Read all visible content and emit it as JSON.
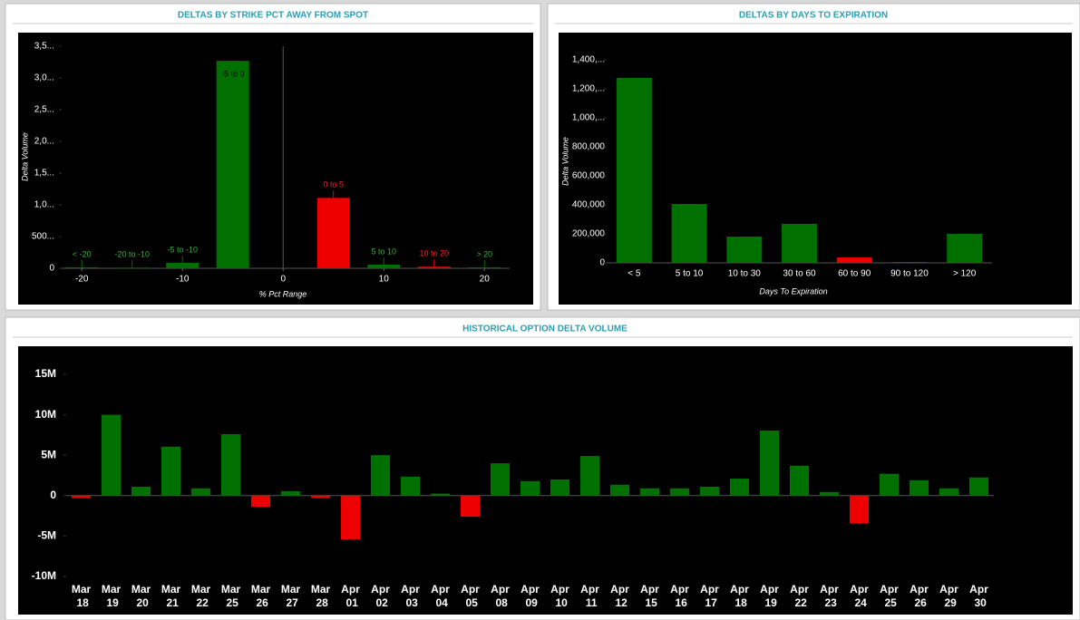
{
  "chart_data": [
    {
      "type": "bar",
      "title": "DELTAS BY STRIKE PCT AWAY FROM SPOT",
      "x_label": "% Pct Range",
      "y_label": "Delta Volume",
      "categories": [
        "< -20",
        "-20 to -10",
        "-5 to -10",
        "-5 to 0",
        "0 to 5",
        "5 to 10",
        "10 to 20",
        "> 20"
      ],
      "x": [
        -20,
        -15,
        -10,
        -5,
        5,
        10,
        15,
        20
      ],
      "values": [
        15000,
        10000,
        86000,
        3270000,
        1110000,
        57000,
        25000,
        15000
      ],
      "colors": [
        "#007000",
        "#007000",
        "#007000",
        "#007000",
        "#ee0000",
        "#007000",
        "#ee0000",
        "#007000"
      ],
      "xlim": [
        -22,
        22.5
      ],
      "xticks": [
        -20,
        -10,
        0,
        10,
        20
      ],
      "ylim": [
        0,
        3500000
      ],
      "yticks": [
        0,
        {
          "value": 500000,
          "label": "500..."
        },
        {
          "value": 1000000,
          "label": "1,0..."
        },
        {
          "value": 1500000,
          "label": "1,5..."
        },
        {
          "value": 2000000,
          "label": "2,0..."
        },
        {
          "value": 2500000,
          "label": "2,5..."
        },
        {
          "value": 3000000,
          "label": "3,0..."
        },
        {
          "value": 3500000,
          "label": "3,5..."
        }
      ]
    },
    {
      "type": "bar",
      "title": "DELTAS BY DAYS TO EXPIRATION",
      "x_label": "Days To Expiration",
      "y_label": "Delta Volume",
      "categories": [
        "< 5",
        "5 to 10",
        "10 to 30",
        "30 to 60",
        "60 to 90",
        "90 to 120",
        "> 120"
      ],
      "values": [
        1275000,
        406000,
        181000,
        269000,
        37000,
        6000,
        200000
      ],
      "colors": [
        "#007000",
        "#007000",
        "#007000",
        "#007000",
        "#ee0000",
        "#007000",
        "#007000"
      ],
      "ylim": [
        0,
        1450000
      ],
      "yticks": [
        0,
        {
          "value": 200000,
          "label": "200,000"
        },
        {
          "value": 400000,
          "label": "400,000"
        },
        {
          "value": 600000,
          "label": "600,000"
        },
        {
          "value": 800000,
          "label": "800,000"
        },
        {
          "value": 1000000,
          "label": "1,000,..."
        },
        {
          "value": 1200000,
          "label": "1,200,..."
        },
        {
          "value": 1400000,
          "label": "1,400,..."
        }
      ]
    },
    {
      "type": "bar",
      "title": "HISTORICAL OPTION DELTA VOLUME",
      "categories": [
        "Mar 18",
        "Mar 19",
        "Mar 20",
        "Mar 21",
        "Mar 22",
        "Mar 25",
        "Mar 26",
        "Mar 27",
        "Mar 28",
        "Apr 01",
        "Apr 02",
        "Apr 03",
        "Apr 04",
        "Apr 05",
        "Apr 08",
        "Apr 09",
        "Apr 10",
        "Apr 11",
        "Apr 12",
        "Apr 15",
        "Apr 16",
        "Apr 17",
        "Apr 18",
        "Apr 19",
        "Apr 22",
        "Apr 23",
        "Apr 24",
        "Apr 25",
        "Apr 26",
        "Apr 29",
        "Apr 30"
      ],
      "values": [
        -300000,
        10000000,
        1100000,
        6050000,
        900000,
        7600000,
        -1400000,
        550000,
        -300000,
        -5400000,
        5000000,
        2350000,
        250000,
        -2600000,
        4000000,
        1800000,
        2000000,
        4900000,
        1350000,
        900000,
        900000,
        1100000,
        2100000,
        8050000,
        3700000,
        450000,
        -3450000,
        2700000,
        1900000,
        900000,
        2250000
      ],
      "colors": [
        "#ee0000",
        "#007000",
        "#007000",
        "#007000",
        "#007000",
        "#007000",
        "#ee0000",
        "#007000",
        "#ee0000",
        "#ee0000",
        "#007000",
        "#007000",
        "#007000",
        "#ee0000",
        "#007000",
        "#007000",
        "#007000",
        "#007000",
        "#007000",
        "#007000",
        "#007000",
        "#007000",
        "#007000",
        "#007000",
        "#007000",
        "#007000",
        "#ee0000",
        "#007000",
        "#007000",
        "#007000",
        "#007000"
      ],
      "ylim": [
        -10000000,
        15000000
      ],
      "yticks": [
        {
          "value": -10000000,
          "label": "-10M"
        },
        {
          "value": -5000000,
          "label": "-5M"
        },
        0,
        {
          "value": 5000000,
          "label": "5M"
        },
        {
          "value": 10000000,
          "label": "10M"
        },
        {
          "value": 15000000,
          "label": "15M"
        }
      ]
    }
  ]
}
